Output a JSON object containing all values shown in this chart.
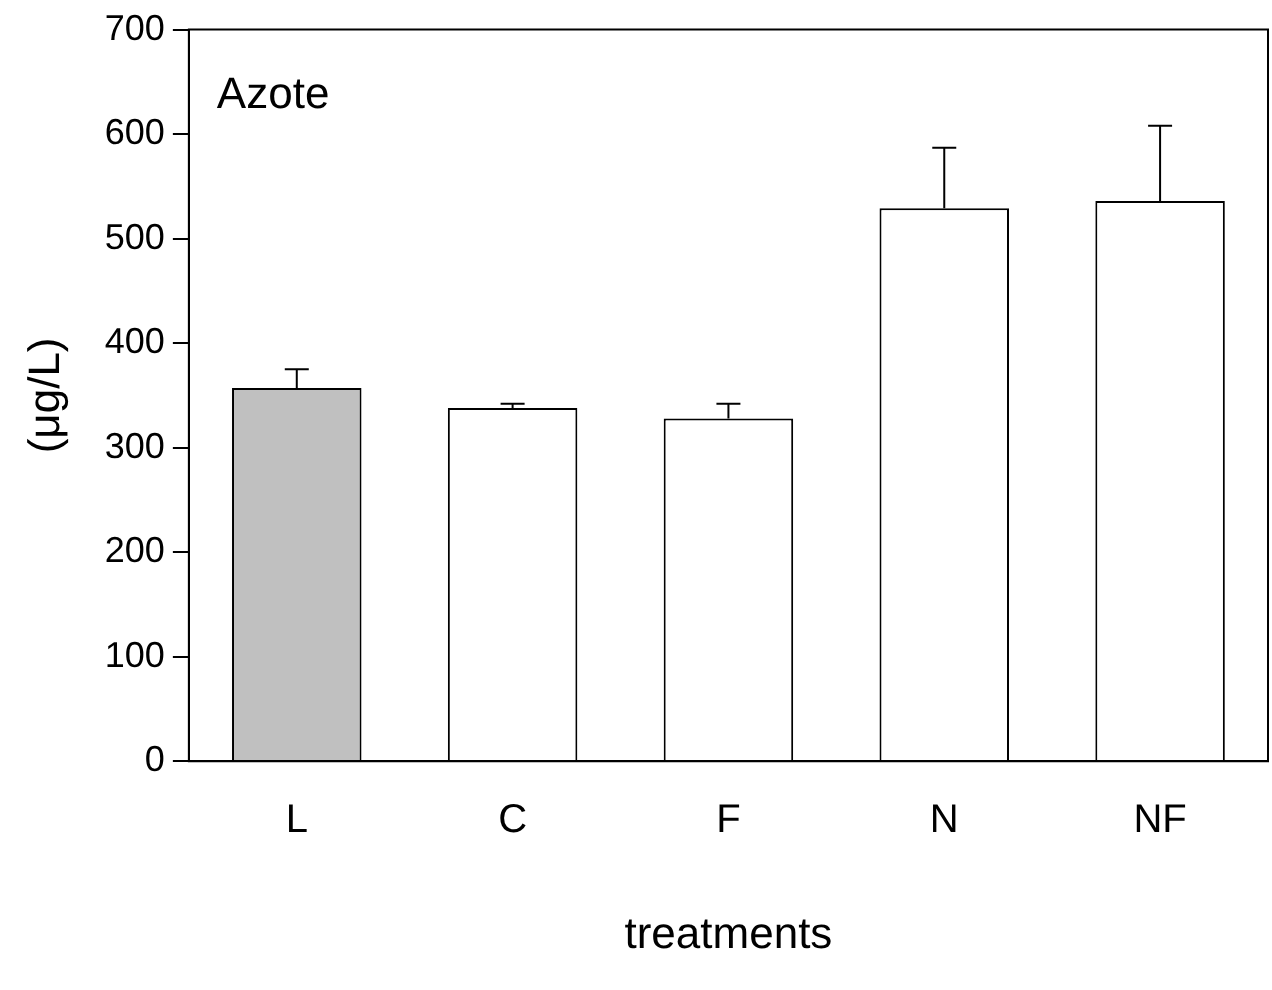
{
  "chart_data": {
    "type": "bar",
    "xlabel": "treatments",
    "ylabel": "(μg/L)",
    "annotations": [
      "Azote"
    ],
    "categories": [
      "L",
      "C",
      "F",
      "N",
      "NF"
    ],
    "values": [
      357,
      338,
      328,
      529,
      536
    ],
    "colors": [
      "#c0c0c0",
      "#ffffff",
      "#ffffff",
      "#ffffff",
      "#ffffff"
    ],
    "errors": [
      [
        357,
        375
      ],
      [
        338,
        342
      ],
      [
        328,
        342
      ],
      [
        529,
        587
      ],
      [
        536,
        608
      ]
    ],
    "ylim": [
      0,
      700
    ],
    "yticks": [
      0,
      100,
      200,
      300,
      400,
      500,
      600,
      700
    ],
    "grid": false,
    "legend": false
  }
}
